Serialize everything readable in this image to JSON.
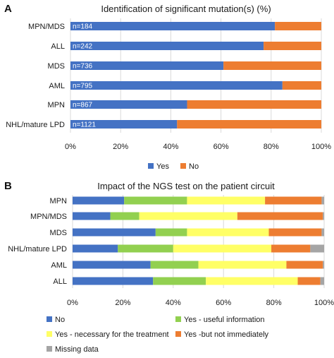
{
  "chart_data": [
    {
      "panel": "A",
      "type": "bar",
      "stacked": true,
      "orientation": "horizontal",
      "title": "Identification of significant mutation(s) (%)",
      "categories": [
        "MPN/MDS",
        "ALL",
        "MDS",
        "AML",
        "MPN",
        "NHL/mature LPD"
      ],
      "bar_labels": [
        "n=184",
        "n=242",
        "n=736",
        "n=795",
        "n=867",
        "n=1121"
      ],
      "series": [
        {
          "name": "Yes",
          "color": "#4472C4",
          "values": [
            81.5,
            77,
            61,
            84.5,
            46.5,
            42.5
          ]
        },
        {
          "name": "No",
          "color": "#ED7D31",
          "values": [
            18.5,
            23,
            39,
            15.5,
            53.5,
            57.5
          ]
        }
      ],
      "xlim": [
        0,
        100
      ],
      "xticks": [
        "0%",
        "20%",
        "40%",
        "60%",
        "80%",
        "100%"
      ],
      "grid": true,
      "legend_position": "bottom"
    },
    {
      "panel": "B",
      "type": "bar",
      "stacked": true,
      "orientation": "horizontal",
      "title": "Impact of the NGS test on the patient circuit",
      "categories": [
        "MPN",
        "MPN/MDS",
        "MDS",
        "NHL/mature LPD",
        "AML",
        "ALL"
      ],
      "series": [
        {
          "name": "No",
          "color": "#4472C4",
          "values": [
            20.5,
            15,
            33,
            18,
            31,
            32
          ]
        },
        {
          "name": "Yes - useful information",
          "color": "#92D050",
          "values": [
            25,
            11.5,
            12.5,
            22,
            19,
            21
          ]
        },
        {
          "name": "Yes - necessary for the treatment",
          "color": "#FFFF66",
          "values": [
            31,
            39,
            32.5,
            39,
            35,
            36.5
          ]
        },
        {
          "name": "Yes -but not immediately",
          "color": "#ED7D31",
          "values": [
            22.5,
            34,
            21,
            15.5,
            14.5,
            9
          ]
        },
        {
          "name": "Missing data",
          "color": "#A5A5A5",
          "values": [
            1,
            0.5,
            1,
            5.5,
            0.5,
            1.5
          ]
        }
      ],
      "xlim": [
        0,
        100
      ],
      "xticks": [
        "0%",
        "20%",
        "40%",
        "60%",
        "80%",
        "100%"
      ],
      "grid": true,
      "legend_position": "bottom"
    }
  ]
}
